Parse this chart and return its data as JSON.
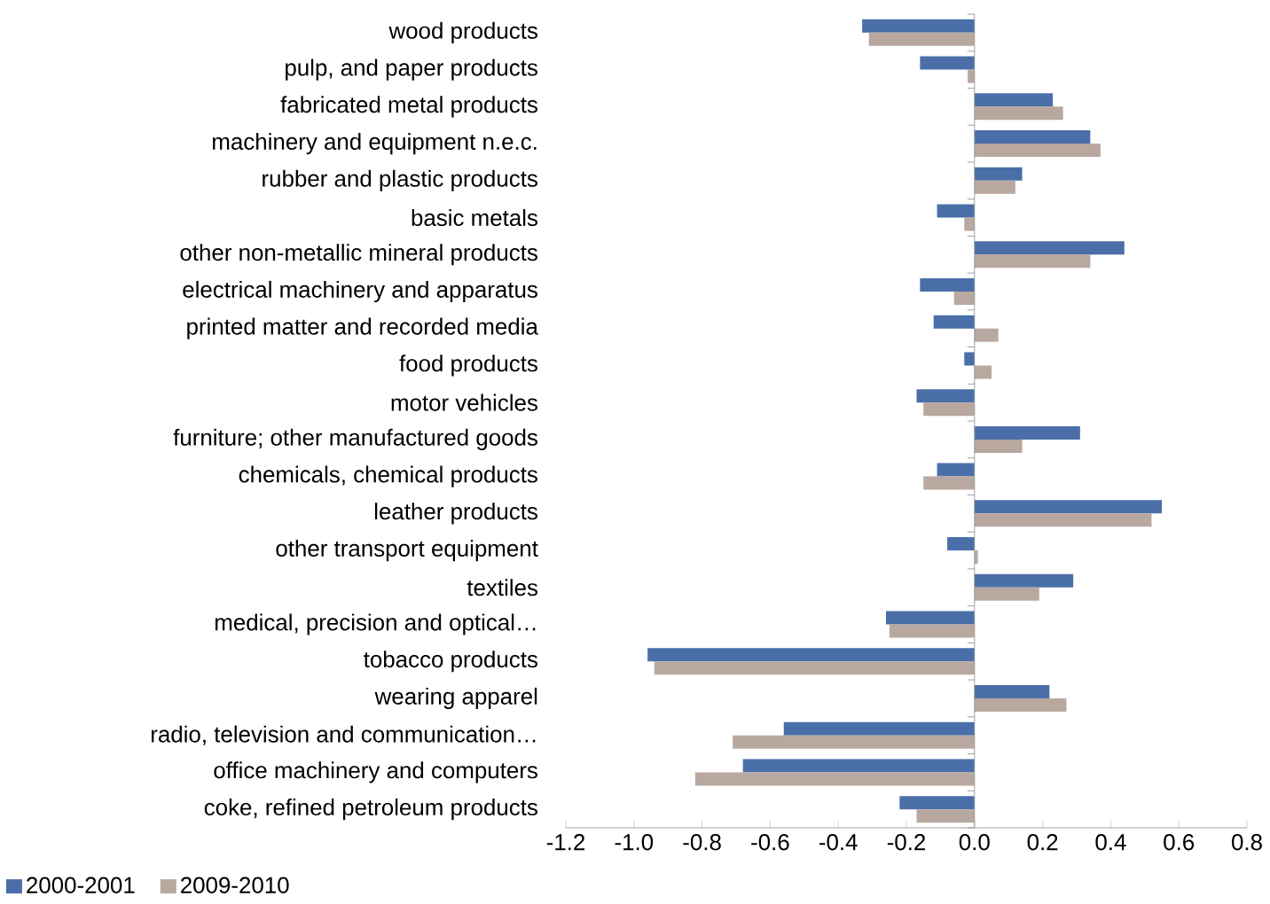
{
  "chart_data": {
    "type": "bar",
    "orientation": "horizontal",
    "categories": [
      "wood products",
      "pulp, and paper products",
      "fabricated metal products",
      "machinery and equipment n.e.c.",
      "rubber and plastic products",
      "basic metals",
      "other non-metallic mineral products",
      "electrical machinery and apparatus",
      "printed matter and recorded media",
      "food products",
      "motor vehicles",
      "furniture; other manufactured goods",
      "chemicals, chemical products",
      "leather products",
      "other transport equipment",
      "textiles",
      "medical, precision and optical…",
      "tobacco products",
      "wearing apparel",
      "radio, television and communication…",
      "office machinery and computers",
      "coke, refined petroleum products"
    ],
    "series": [
      {
        "name": "2000-2001",
        "color": "#4a6fa8",
        "values": [
          -0.33,
          -0.16,
          0.23,
          0.34,
          0.14,
          -0.11,
          0.44,
          -0.16,
          -0.12,
          -0.03,
          -0.17,
          0.31,
          -0.11,
          0.55,
          -0.08,
          0.29,
          -0.26,
          -0.96,
          0.22,
          -0.56,
          -0.68,
          -0.22
        ]
      },
      {
        "name": "2009-2010",
        "color": "#b8a8a0",
        "values": [
          -0.31,
          -0.02,
          0.26,
          0.37,
          0.12,
          -0.03,
          0.34,
          -0.06,
          0.07,
          0.05,
          -0.15,
          0.14,
          -0.15,
          0.52,
          0.01,
          0.19,
          -0.25,
          -0.94,
          0.27,
          -0.71,
          -0.82,
          -0.17
        ]
      }
    ],
    "xlim": [
      -1.2,
      0.8
    ],
    "xticks": [
      {
        "value": -1.2,
        "label": "-1.2"
      },
      {
        "value": -1.0,
        "label": "-1.0"
      },
      {
        "value": -0.8,
        "label": "-0.8"
      },
      {
        "value": -0.6,
        "label": "-0.6"
      },
      {
        "value": -0.4,
        "label": "-0.4"
      },
      {
        "value": -0.2,
        "label": "-0.2"
      },
      {
        "value": 0,
        "label": "0.0"
      },
      {
        "value": 0.2,
        "label": "0.2"
      },
      {
        "value": 0.4,
        "label": "0.4"
      },
      {
        "value": 0.6,
        "label": "0.6"
      },
      {
        "value": 0.8,
        "label": "0.8"
      }
    ],
    "legend": "bottom"
  }
}
